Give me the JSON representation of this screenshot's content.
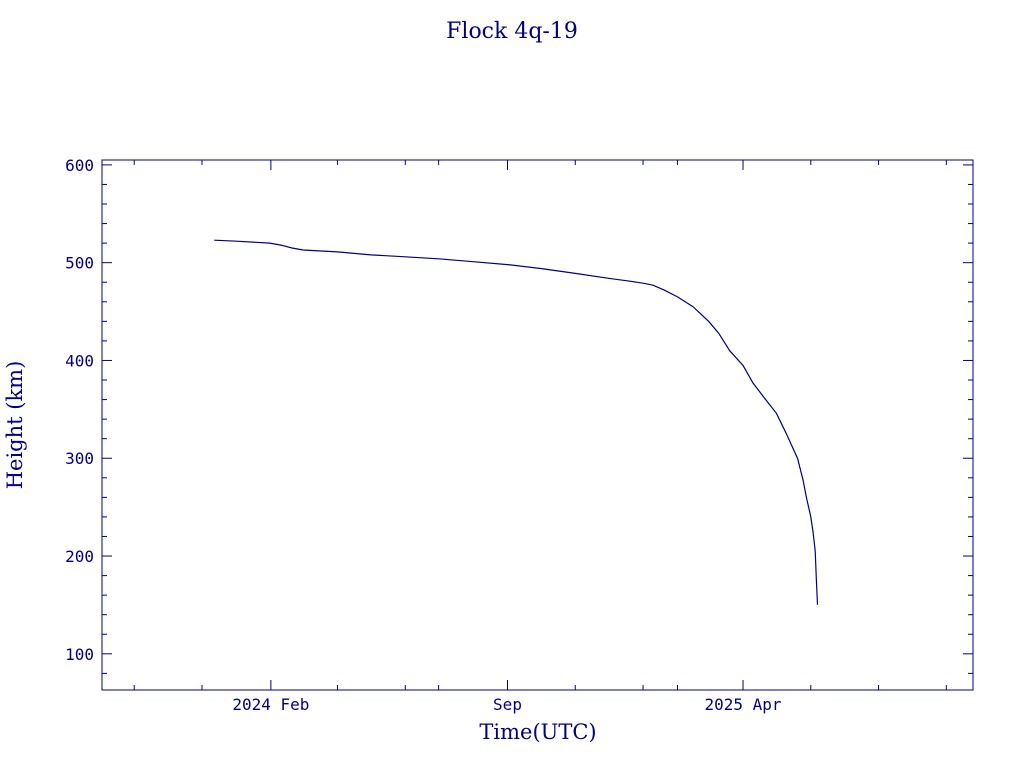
{
  "chart_data": {
    "type": "line",
    "title": "Flock 4q-19",
    "xlabel": "Time(UTC)",
    "ylabel": "Height (km)",
    "xlim": [
      "2023-09-02",
      "2025-10-25"
    ],
    "ylim": [
      63,
      605
    ],
    "x_ticks": [
      {
        "date": "2024-02-01",
        "label": "2024 Feb"
      },
      {
        "date": "2024-09-01",
        "label": "Sep"
      },
      {
        "date": "2025-04-01",
        "label": "2025 Apr"
      }
    ],
    "y_ticks": [
      100,
      200,
      300,
      400,
      500,
      600
    ],
    "color": "#000080",
    "series": [
      {
        "x": [
          "2023-12-12",
          "2024-01-01",
          "2024-01-31",
          "2024-02-10",
          "2024-02-20",
          "2024-03-01",
          "2024-04-01",
          "2024-05-01",
          "2024-06-01",
          "2024-07-01",
          "2024-08-01",
          "2024-09-01",
          "2024-10-01",
          "2024-11-01",
          "2024-12-01",
          "2024-12-21",
          "2025-01-01",
          "2025-01-10",
          "2025-01-20",
          "2025-02-01",
          "2025-02-15",
          "2025-03-01",
          "2025-03-10",
          "2025-03-20",
          "2025-04-01",
          "2025-04-10",
          "2025-04-20",
          "2025-05-01",
          "2025-05-10",
          "2025-05-20",
          "2025-05-25",
          "2025-05-28",
          "2025-06-01",
          "2025-06-03",
          "2025-06-05",
          "2025-06-06",
          "2025-06-07"
        ],
        "y": [
          523,
          522,
          520,
          518,
          515,
          513,
          511,
          508,
          506,
          504,
          501,
          498,
          494,
          489,
          484,
          481,
          479,
          477,
          472,
          465,
          455,
          440,
          428,
          410,
          395,
          377,
          362,
          346,
          325,
          300,
          278,
          260,
          240,
          225,
          205,
          175,
          150
        ]
      }
    ]
  }
}
